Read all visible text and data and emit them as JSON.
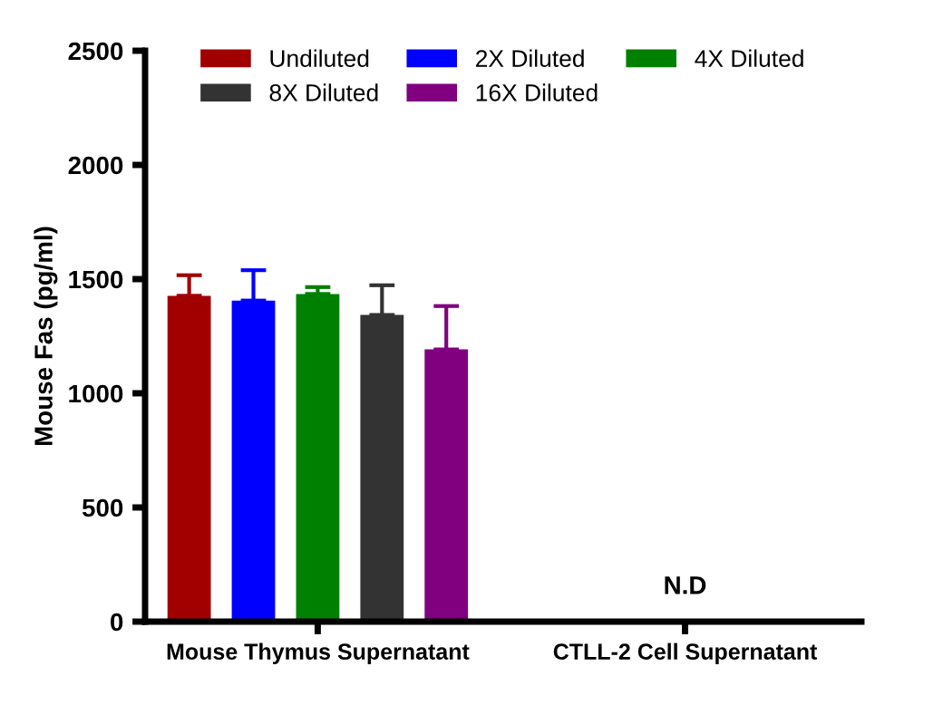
{
  "chart_data": {
    "type": "bar",
    "ylabel": "Mouse Fas (pg/ml)",
    "categories": [
      "Mouse Thymus Supernatant",
      "CTLL-2 Cell Supernatant"
    ],
    "series": [
      {
        "name": "Undiluted",
        "color": "#a00000",
        "values": [
          1427,
          null
        ],
        "errors": [
          [
            1427,
            1517
          ],
          null
        ]
      },
      {
        "name": "2X Diluted",
        "color": "#0000ff",
        "values": [
          1406,
          null
        ],
        "errors": [
          [
            1406,
            1539
          ],
          null
        ]
      },
      {
        "name": "4X Diluted",
        "color": "#008000",
        "values": [
          1435,
          null
        ],
        "errors": [
          [
            1435,
            1465
          ],
          null
        ]
      },
      {
        "name": "8X Diluted",
        "color": "#333333",
        "values": [
          1343,
          null
        ],
        "errors": [
          [
            1343,
            1473
          ],
          null
        ]
      },
      {
        "name": "16X Diluted",
        "color": "#800080",
        "values": [
          1192,
          null
        ],
        "errors": [
          [
            1192,
            1382
          ],
          null
        ]
      }
    ],
    "annotations": [
      "N.D"
    ],
    "ylim": [
      0,
      2500
    ],
    "yticks": [
      0,
      500,
      1000,
      1500,
      2000,
      2500
    ],
    "grid": false,
    "legend": "top"
  }
}
